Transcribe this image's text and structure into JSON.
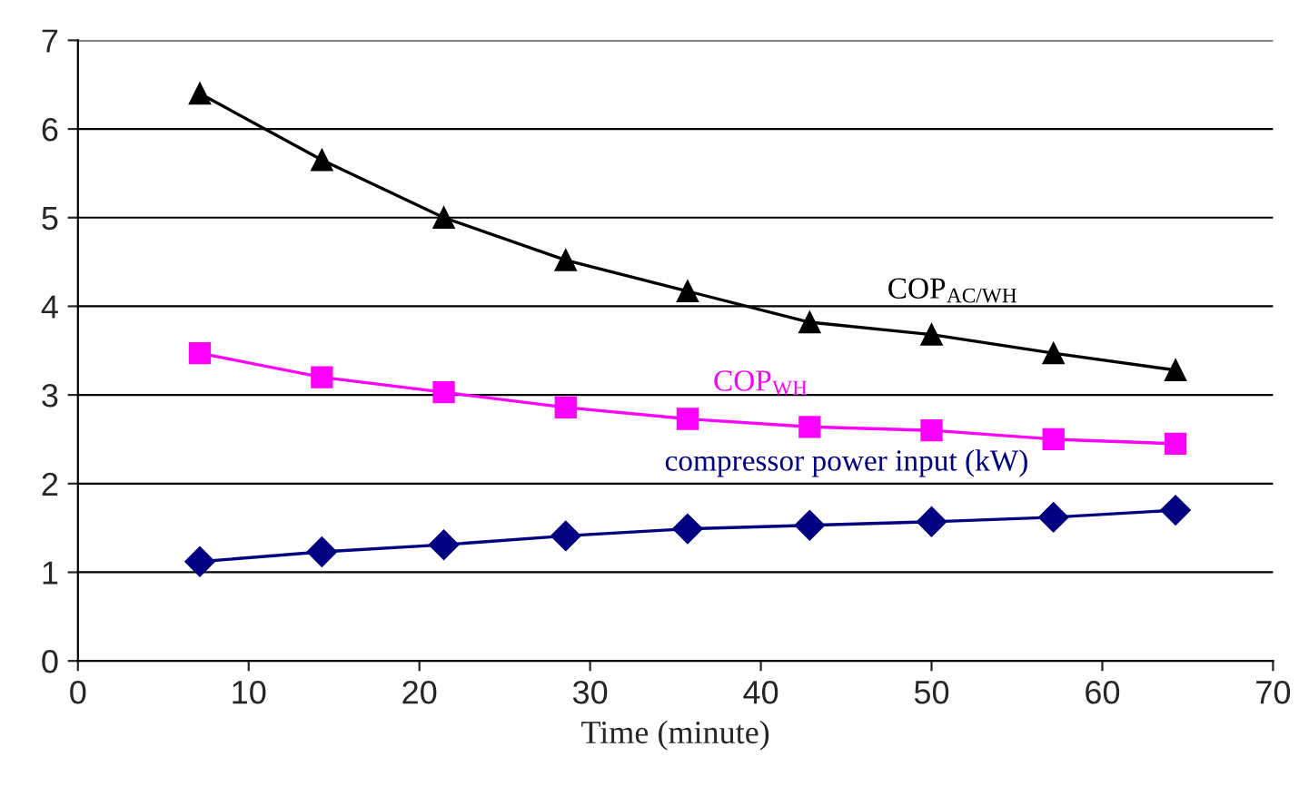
{
  "chart_data": {
    "type": "line",
    "xlabel": "Time (minute)",
    "x": [
      7.14,
      14.29,
      21.43,
      28.57,
      35.71,
      42.86,
      50,
      57.14,
      64.29
    ],
    "series": [
      {
        "name": "COP$_{AC/WH}$",
        "color": "#000000",
        "marker": "triangle",
        "values": [
          6.4,
          5.65,
          5.0,
          4.52,
          4.17,
          3.82,
          3.68,
          3.47,
          3.28
        ]
      },
      {
        "name": "COP$_{WH}$",
        "color": "#ff00ff",
        "marker": "square",
        "values": [
          3.47,
          3.2,
          3.03,
          2.86,
          2.73,
          2.64,
          2.6,
          2.5,
          2.45
        ]
      },
      {
        "name": "compressor power input (kW)",
        "color": "#000080",
        "marker": "diamond",
        "values": [
          1.12,
          1.23,
          1.31,
          1.41,
          1.49,
          1.53,
          1.57,
          1.62,
          1.7
        ]
      }
    ],
    "xlim": [
      0,
      70
    ],
    "xticks": [
      0,
      10,
      20,
      30,
      40,
      50,
      60,
      70
    ],
    "ylim": [
      0,
      7
    ],
    "yticks": [
      0,
      1,
      2,
      3,
      4,
      5,
      6,
      7
    ],
    "grid": "y",
    "legend": false
  }
}
